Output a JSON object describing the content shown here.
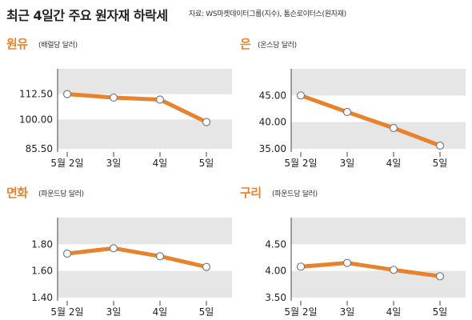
{
  "header": {
    "title": "최근 4일간 주요 원자재 하락세",
    "source": "자료: WS마켓데이터그룹(지수), 톰슨로이터스(원자재)"
  },
  "colors": {
    "line": "#e8822d",
    "band": "#e6e6e6",
    "marker_fill": "#ffffff",
    "marker_stroke": "#7a7a7a",
    "title": "#e8822d"
  },
  "chart_data": [
    {
      "type": "line",
      "title": "원유",
      "unit": "(배럴당 달러)",
      "categories": [
        "5월 2일",
        "3일",
        "4일",
        "5일"
      ],
      "yticks": [
        "112.50",
        "100.00",
        "85.50"
      ],
      "ylim": [
        85.5,
        125
      ],
      "series": [
        {
          "values": [
            112.5,
            110.8,
            109.8,
            98.7
          ]
        }
      ]
    },
    {
      "type": "line",
      "title": "은",
      "unit": "(온스당 달러)",
      "categories": [
        "5월 2일",
        "3일",
        "4일",
        "5일"
      ],
      "yticks": [
        "45.00",
        "40.00",
        "35.00"
      ],
      "ylim": [
        35,
        50
      ],
      "series": [
        {
          "values": [
            45.0,
            41.9,
            38.9,
            35.6
          ]
        }
      ]
    },
    {
      "type": "line",
      "title": "면화",
      "unit": "(파운드당 달러)",
      "categories": [
        "5월 2일",
        "3일",
        "4일",
        "5일"
      ],
      "yticks": [
        "1.80",
        "1.60",
        "1.40"
      ],
      "ylim": [
        1.4,
        2.0
      ],
      "series": [
        {
          "values": [
            1.73,
            1.77,
            1.71,
            1.63
          ]
        }
      ]
    },
    {
      "type": "line",
      "title": "구리",
      "unit": "(파운드당 달러)",
      "categories": [
        "5월 2일",
        "3일",
        "4일",
        "5일"
      ],
      "yticks": [
        "4.50",
        "4.00",
        "3.50"
      ],
      "ylim": [
        3.5,
        5.0
      ],
      "series": [
        {
          "values": [
            4.08,
            4.15,
            4.02,
            3.9
          ]
        }
      ]
    }
  ]
}
